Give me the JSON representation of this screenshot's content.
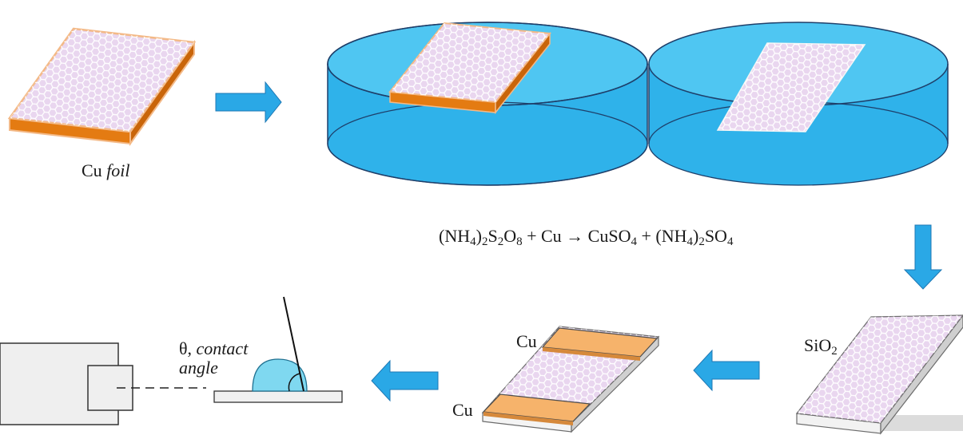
{
  "labels": {
    "cu_foil_plain": "Cu",
    "cu_foil_italic": "foil",
    "equation_parts": [
      "(NH",
      "4",
      ")",
      "2",
      "S",
      "2",
      "O",
      "8",
      " + Cu → CuSO",
      "4",
      " + (NH",
      "4",
      ")",
      "2",
      "SO",
      "4"
    ],
    "sio2_main": "SiO",
    "sio2_sub": "2",
    "cu_top": "Cu",
    "cu_bottom": "Cu",
    "theta_prefix": "θ,",
    "contact_word": "contact",
    "angle_word": "angle"
  },
  "colors": {
    "water_top": "#4fc6f2",
    "water_side": "#2fb2ea",
    "arrow_fill": "#2aa8e6",
    "foil_orange": "#e47b12",
    "foil_edge": "#f3b987",
    "graphene_fill": "#e9d6ef",
    "hex_stroke": "#ffffff",
    "cu_pad": "#f6b36b",
    "droplet": "#7fd8f0"
  },
  "icons": [
    "graphene-lattice-icon",
    "right-arrow-icon",
    "down-arrow-icon",
    "left-arrow-icon",
    "camera-icon",
    "water-droplet-icon"
  ]
}
